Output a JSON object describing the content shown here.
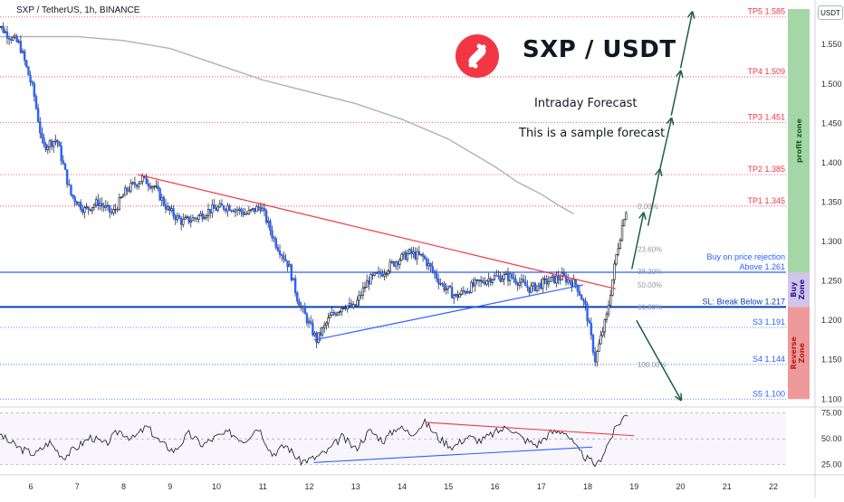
{
  "header": {
    "symbol_line": "SXP / TetherUS, 1h, BINANCE"
  },
  "brand": {
    "title": "SXP / USDT",
    "logo_color": "#f23645"
  },
  "notes": {
    "line1": "Intraday Forecast",
    "line2": "This is a sample forecast"
  },
  "currency_button": "USDT",
  "chart_data": {
    "type": "candlestick",
    "price_axis": {
      "ylim": [
        1.09,
        1.595
      ],
      "ticks": [
        1.1,
        1.15,
        1.2,
        1.25,
        1.3,
        1.35,
        1.4,
        1.45,
        1.5,
        1.55
      ]
    },
    "x_axis": {
      "ticks": [
        "6",
        "7",
        "8",
        "9",
        "10",
        "11",
        "12",
        "13",
        "14",
        "15",
        "16",
        "17",
        "18",
        "19",
        "20",
        "21",
        "22"
      ]
    },
    "path": [
      [
        5.2,
        1.585
      ],
      [
        5.5,
        1.565
      ],
      [
        5.8,
        1.55
      ],
      [
        6.1,
        1.49
      ],
      [
        6.3,
        1.42
      ],
      [
        6.6,
        1.43
      ],
      [
        6.9,
        1.36
      ],
      [
        7.2,
        1.34
      ],
      [
        7.5,
        1.35
      ],
      [
        7.8,
        1.335
      ],
      [
        8.1,
        1.365
      ],
      [
        8.45,
        1.38
      ],
      [
        8.7,
        1.37
      ],
      [
        9.0,
        1.34
      ],
      [
        9.3,
        1.325
      ],
      [
        9.6,
        1.33
      ],
      [
        9.9,
        1.34
      ],
      [
        10.3,
        1.345
      ],
      [
        10.7,
        1.335
      ],
      [
        11.0,
        1.345
      ],
      [
        11.3,
        1.3
      ],
      [
        11.6,
        1.27
      ],
      [
        11.8,
        1.225
      ],
      [
        12.0,
        1.2
      ],
      [
        12.2,
        1.175
      ],
      [
        12.5,
        1.205
      ],
      [
        12.8,
        1.22
      ],
      [
        13.0,
        1.215
      ],
      [
        13.3,
        1.25
      ],
      [
        13.6,
        1.26
      ],
      [
        13.9,
        1.275
      ],
      [
        14.2,
        1.285
      ],
      [
        14.5,
        1.28
      ],
      [
        14.9,
        1.245
      ],
      [
        15.2,
        1.23
      ],
      [
        15.6,
        1.245
      ],
      [
        16.0,
        1.255
      ],
      [
        16.4,
        1.255
      ],
      [
        16.8,
        1.24
      ],
      [
        17.2,
        1.25
      ],
      [
        17.5,
        1.255
      ],
      [
        17.8,
        1.245
      ],
      [
        18.0,
        1.215
      ],
      [
        18.2,
        1.15
      ],
      [
        18.45,
        1.205
      ],
      [
        18.65,
        1.28
      ],
      [
        18.85,
        1.34
      ]
    ],
    "moving_average": [
      [
        5.2,
        1.56
      ],
      [
        6.0,
        1.56
      ],
      [
        7.0,
        1.56
      ],
      [
        8.0,
        1.555
      ],
      [
        9.0,
        1.545
      ],
      [
        10.0,
        1.525
      ],
      [
        11.0,
        1.505
      ],
      [
        12.0,
        1.49
      ],
      [
        13.0,
        1.475
      ],
      [
        14.0,
        1.455
      ],
      [
        15.0,
        1.43
      ],
      [
        16.0,
        1.395
      ],
      [
        16.5,
        1.375
      ],
      [
        17.0,
        1.36
      ],
      [
        17.4,
        1.345
      ],
      [
        17.7,
        1.335
      ]
    ],
    "trendlines": [
      {
        "from": [
          8.3,
          1.385
        ],
        "to": [
          18.6,
          1.24
        ],
        "color": "#f23645"
      },
      {
        "from": [
          12.1,
          1.175
        ],
        "to": [
          17.9,
          1.245
        ],
        "color": "#2962ff"
      }
    ],
    "levels": [
      {
        "price": 1.585,
        "label": "TP5 1.585",
        "color": "#f23645",
        "style": "dotted"
      },
      {
        "price": 1.509,
        "label": "TP4 1.509",
        "color": "#f23645",
        "style": "dotted"
      },
      {
        "price": 1.451,
        "label": "TP3 1.451",
        "color": "#f23645",
        "style": "dotted"
      },
      {
        "price": 1.385,
        "label": "TP2 1.385",
        "color": "#f23645",
        "style": "dotted"
      },
      {
        "price": 1.345,
        "label": "TP1 1.345",
        "color": "#f23645",
        "style": "dotted"
      },
      {
        "price": 1.261,
        "label": "Above 1.261",
        "color": "#2962ff",
        "style": "solid"
      },
      {
        "price": 1.217,
        "label": "SL: Break Below 1.217",
        "color": "#0d3fb8",
        "style": "solid"
      },
      {
        "price": 1.191,
        "label": "S3 1.191",
        "color": "#2962ff",
        "style": "dotted"
      },
      {
        "price": 1.144,
        "label": "S4 1.144",
        "color": "#2962ff",
        "style": "dotted"
      },
      {
        "price": 1.1,
        "label": "S5 1.100",
        "color": "#2962ff",
        "style": "dotted"
      }
    ],
    "buy_note": "Buy on price rejection",
    "fib_levels": [
      {
        "label": "0.00%",
        "price": 1.345
      },
      {
        "label": "23.60%",
        "price": 1.29
      },
      {
        "label": "38.20%",
        "price": 1.262
      },
      {
        "label": "50.00%",
        "price": 1.245
      },
      {
        "label": "61.80%",
        "price": 1.217
      },
      {
        "label": "100.00%",
        "price": 1.144
      }
    ],
    "zones": [
      {
        "label": "profit zone",
        "from": 1.261,
        "to": 1.595,
        "color": "#a5d6a7"
      },
      {
        "label": "Buy Zone",
        "from": 1.217,
        "to": 1.261,
        "color": "#d1c4e9"
      },
      {
        "label": "Reverse Zone",
        "from": 1.1,
        "to": 1.217,
        "color": "#ef9a9a"
      }
    ],
    "forecast_arrows": [
      {
        "from": [
          18.95,
          1.265
        ],
        "to": [
          19.2,
          1.335
        ]
      },
      {
        "from": [
          19.3,
          1.32
        ],
        "to": [
          19.55,
          1.39
        ]
      },
      {
        "from": [
          19.55,
          1.39
        ],
        "to": [
          19.8,
          1.455
        ]
      },
      {
        "from": [
          19.8,
          1.46
        ],
        "to": [
          20.0,
          1.515
        ]
      },
      {
        "from": [
          20.0,
          1.52
        ],
        "to": [
          20.25,
          1.59
        ]
      },
      {
        "from": [
          19.05,
          1.2
        ],
        "to": [
          20.0,
          1.1
        ]
      }
    ],
    "rsi": {
      "ylim": [
        15,
        80
      ],
      "ticks": [
        25.0,
        50.0,
        75.0
      ],
      "values": [
        [
          5.2,
          60
        ],
        [
          5.5,
          48
        ],
        [
          5.8,
          40
        ],
        [
          6.1,
          35
        ],
        [
          6.4,
          47
        ],
        [
          6.7,
          32
        ],
        [
          7.0,
          42
        ],
        [
          7.3,
          52
        ],
        [
          7.6,
          44
        ],
        [
          7.9,
          58
        ],
        [
          8.2,
          50
        ],
        [
          8.5,
          62
        ],
        [
          8.8,
          46
        ],
        [
          9.1,
          38
        ],
        [
          9.4,
          55
        ],
        [
          9.7,
          44
        ],
        [
          10.0,
          52
        ],
        [
          10.3,
          56
        ],
        [
          10.6,
          48
        ],
        [
          10.9,
          62
        ],
        [
          11.2,
          35
        ],
        [
          11.5,
          44
        ],
        [
          11.8,
          28
        ],
        [
          12.1,
          31
        ],
        [
          12.4,
          38
        ],
        [
          12.7,
          52
        ],
        [
          13.0,
          40
        ],
        [
          13.3,
          58
        ],
        [
          13.6,
          48
        ],
        [
          13.9,
          62
        ],
        [
          14.2,
          55
        ],
        [
          14.5,
          66
        ],
        [
          14.8,
          50
        ],
        [
          15.1,
          42
        ],
        [
          15.4,
          52
        ],
        [
          15.7,
          48
        ],
        [
          16.0,
          56
        ],
        [
          16.3,
          62
        ],
        [
          16.6,
          50
        ],
        [
          16.9,
          44
        ],
        [
          17.2,
          56
        ],
        [
          17.5,
          58
        ],
        [
          17.8,
          38
        ],
        [
          18.0,
          30
        ],
        [
          18.2,
          24
        ],
        [
          18.4,
          42
        ],
        [
          18.6,
          60
        ],
        [
          18.75,
          70
        ],
        [
          18.9,
          76
        ]
      ],
      "trendlines": [
        {
          "from": [
            12.1,
            27
          ],
          "to": [
            18.1,
            42
          ],
          "color": "#2962ff"
        },
        {
          "from": [
            14.5,
            66
          ],
          "to": [
            19.0,
            53
          ],
          "color": "#f23645"
        }
      ]
    }
  }
}
